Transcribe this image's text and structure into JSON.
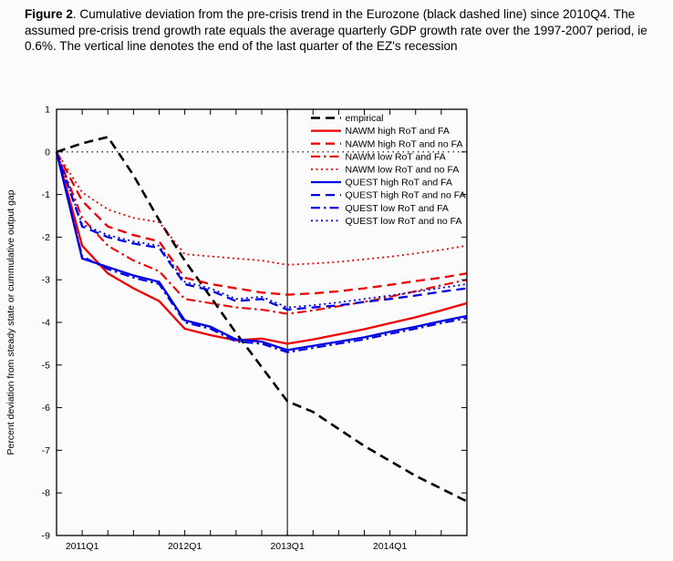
{
  "figure_caption": {
    "label": "Figure 2",
    "text": ". Cumulative deviation from the pre-crisis trend in the Eurozone (black dashed line) since 2010Q4. The assumed pre-crisis trend growth rate equals the average quarterly GDP growth rate over the 1997-2007 period, ie 0.6%. The vertical line denotes the end of the last quarter of the EZ's recession"
  },
  "colors": {
    "black": "#000000",
    "red": "#ee0000",
    "blue": "#0000e0"
  },
  "chart_data": {
    "type": "line",
    "title": "",
    "xlabel": "",
    "ylabel": "Percent deviation from steady state or cummulative output gap",
    "ylim": [
      -9,
      1
    ],
    "y_ticks": [
      1,
      0,
      -1,
      -2,
      -3,
      -4,
      -5,
      -6,
      -7,
      -8,
      -9
    ],
    "categories": [
      "2010Q4",
      "2011Q1",
      "2011Q2",
      "2011Q3",
      "2011Q4",
      "2012Q1",
      "2012Q2",
      "2012Q3",
      "2012Q4",
      "2013Q1",
      "2013Q2",
      "2013Q3",
      "2013Q4",
      "2014Q1",
      "2014Q2",
      "2014Q3",
      "2014Q4"
    ],
    "x_tick_labels": {
      "1": "2011Q1",
      "5": "2012Q1",
      "9": "2013Q1",
      "13": "2014Q1"
    },
    "vline_at": "2013Q1",
    "zero_line": true,
    "grid": false,
    "legend_position": "upper right inside plot, no frame",
    "series": [
      {
        "name": "empirical",
        "color": "#000000",
        "style": "dashed",
        "width": 2.6,
        "values": [
          0,
          0.2,
          0.35,
          -0.55,
          -1.6,
          -2.55,
          -3.4,
          -4.25,
          -5.05,
          -5.85,
          -6.1,
          -6.5,
          -6.9,
          -7.25,
          -7.6,
          -7.9,
          -8.2
        ]
      },
      {
        "name": "NAWM high RoT and FA",
        "color": "#ee0000",
        "style": "solid",
        "width": 2.3,
        "values": [
          0,
          -2.2,
          -2.85,
          -3.2,
          -3.5,
          -4.15,
          -4.3,
          -4.42,
          -4.38,
          -4.5,
          -4.4,
          -4.28,
          -4.16,
          -4.02,
          -3.88,
          -3.72,
          -3.55
        ]
      },
      {
        "name": "NAWM high RoT and no FA",
        "color": "#ee0000",
        "style": "dashed",
        "width": 2.3,
        "values": [
          0,
          -1.15,
          -1.75,
          -1.95,
          -2.1,
          -2.95,
          -3.1,
          -3.2,
          -3.3,
          -3.35,
          -3.32,
          -3.27,
          -3.2,
          -3.12,
          -3.03,
          -2.95,
          -2.85
        ]
      },
      {
        "name": "NAWM low RoT and FA",
        "color": "#ee0000",
        "style": "dashdot",
        "width": 2.1,
        "values": [
          0,
          -1.55,
          -2.2,
          -2.55,
          -2.8,
          -3.45,
          -3.55,
          -3.65,
          -3.7,
          -3.8,
          -3.72,
          -3.62,
          -3.52,
          -3.4,
          -3.27,
          -3.13,
          -3.0
        ]
      },
      {
        "name": "NAWM low RoT and no FA",
        "color": "#ee0000",
        "style": "dotted",
        "width": 1.8,
        "values": [
          0,
          -0.95,
          -1.35,
          -1.55,
          -1.65,
          -2.4,
          -2.45,
          -2.5,
          -2.55,
          -2.65,
          -2.62,
          -2.58,
          -2.52,
          -2.46,
          -2.38,
          -2.3,
          -2.2
        ]
      },
      {
        "name": "QUEST high RoT and FA",
        "color": "#0000e0",
        "style": "solid",
        "width": 2.3,
        "values": [
          0,
          -2.5,
          -2.7,
          -2.9,
          -3.05,
          -3.95,
          -4.1,
          -4.4,
          -4.45,
          -4.65,
          -4.55,
          -4.45,
          -4.35,
          -4.22,
          -4.1,
          -3.97,
          -3.85
        ]
      },
      {
        "name": "QUEST high RoT and no FA",
        "color": "#0000e0",
        "style": "dashed",
        "width": 2.3,
        "values": [
          0,
          -1.75,
          -2.0,
          -2.15,
          -2.25,
          -3.1,
          -3.25,
          -3.5,
          -3.45,
          -3.7,
          -3.65,
          -3.6,
          -3.52,
          -3.45,
          -3.37,
          -3.28,
          -3.2
        ]
      },
      {
        "name": "QUEST low RoT and FA",
        "color": "#0000e0",
        "style": "dashdot",
        "width": 2.1,
        "values": [
          0,
          -2.45,
          -2.75,
          -2.95,
          -3.1,
          -4.0,
          -4.15,
          -4.45,
          -4.5,
          -4.7,
          -4.6,
          -4.5,
          -4.4,
          -4.27,
          -4.15,
          -4.02,
          -3.9
        ]
      },
      {
        "name": "QUEST low RoT and no FA",
        "color": "#0000e0",
        "style": "dotted",
        "width": 1.8,
        "values": [
          0,
          -1.7,
          -1.95,
          -2.1,
          -2.2,
          -3.05,
          -3.2,
          -3.45,
          -3.4,
          -3.65,
          -3.6,
          -3.53,
          -3.45,
          -3.37,
          -3.28,
          -3.19,
          -3.1
        ]
      }
    ]
  }
}
